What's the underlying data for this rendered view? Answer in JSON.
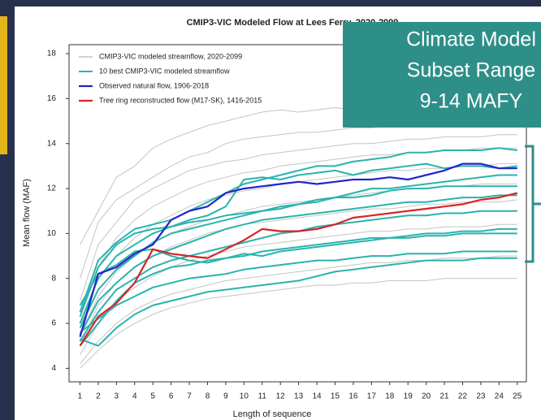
{
  "chart_data": {
    "type": "line",
    "title": "CMIP3-VIC Modeled Flow at Lees Ferry, 2020-2099",
    "xlabel": "Length of sequence",
    "ylabel": "Mean flow (MAF)",
    "callout": [
      "Climate Model",
      "Subset Range",
      "9-14 MAFY"
    ],
    "callout_color": "#2e8f88",
    "x": [
      1,
      2,
      3,
      4,
      5,
      6,
      7,
      8,
      9,
      10,
      11,
      12,
      13,
      14,
      15,
      16,
      17,
      18,
      19,
      20,
      21,
      22,
      23,
      24,
      25
    ],
    "xlim": [
      0.4,
      25.5
    ],
    "xticks": [
      1,
      2,
      3,
      4,
      5,
      6,
      7,
      8,
      9,
      10,
      11,
      12,
      13,
      14,
      15,
      16,
      17,
      18,
      19,
      20,
      21,
      22,
      23,
      24,
      25
    ],
    "ylim": [
      3.4,
      18.4
    ],
    "yticks": [
      4,
      6,
      8,
      10,
      12,
      14,
      16,
      18
    ],
    "series": [
      {
        "name": "CMIP3-VIC modeled streamflow, 2020-2099",
        "color": "#c4c4c4",
        "width": 1,
        "lines": [
          [
            9.5,
            11.0,
            12.5,
            13.0,
            13.8,
            14.2,
            14.5,
            14.8,
            15.0,
            15.2,
            15.4,
            15.5,
            15.4,
            15.5,
            15.6,
            15.5,
            15.6,
            15.6,
            15.7,
            15.6,
            15.6,
            15.7,
            15.6,
            15.6,
            15.7
          ],
          [
            8.0,
            10.5,
            11.5,
            12.0,
            12.5,
            13.0,
            13.4,
            13.6,
            14.0,
            14.2,
            14.3,
            14.4,
            14.5,
            14.5,
            14.6,
            14.7,
            14.7,
            14.8,
            14.8,
            14.9,
            14.9,
            14.9,
            15.0,
            15.0,
            15.0
          ],
          [
            7.0,
            9.5,
            10.5,
            11.5,
            12.0,
            12.4,
            12.8,
            13.0,
            13.2,
            13.3,
            13.5,
            13.6,
            13.7,
            13.8,
            13.9,
            14.0,
            14.0,
            14.1,
            14.2,
            14.2,
            14.3,
            14.3,
            14.3,
            14.4,
            14.4
          ],
          [
            6.5,
            8.5,
            9.8,
            10.6,
            11.2,
            11.6,
            12.0,
            12.3,
            12.5,
            12.7,
            12.8,
            13.0,
            13.1,
            13.2,
            13.3,
            13.4,
            13.5,
            13.5,
            13.6,
            13.6,
            13.7,
            13.7,
            13.8,
            13.8,
            13.8
          ],
          [
            5.8,
            8.0,
            9.0,
            9.8,
            10.4,
            10.8,
            11.2,
            11.5,
            11.7,
            11.9,
            12.0,
            12.2,
            12.3,
            12.4,
            12.5,
            12.6,
            12.7,
            12.8,
            12.8,
            12.9,
            12.9,
            13.0,
            13.0,
            13.1,
            13.1
          ],
          [
            5.5,
            7.2,
            8.3,
            9.0,
            9.6,
            10.0,
            10.3,
            10.6,
            10.8,
            11.0,
            11.2,
            11.3,
            11.4,
            11.5,
            11.6,
            11.7,
            11.8,
            11.9,
            12.0,
            12.0,
            12.1,
            12.1,
            12.2,
            12.2,
            12.2
          ],
          [
            5.0,
            6.8,
            7.8,
            8.5,
            9.0,
            9.4,
            9.7,
            10.0,
            10.2,
            10.4,
            10.5,
            10.6,
            10.7,
            10.8,
            10.9,
            11.0,
            11.1,
            11.1,
            11.2,
            11.3,
            11.3,
            11.4,
            11.4,
            11.4,
            11.5
          ],
          [
            4.6,
            6.0,
            7.0,
            7.6,
            8.1,
            8.5,
            8.8,
            9.0,
            9.2,
            9.4,
            9.5,
            9.6,
            9.7,
            9.8,
            9.9,
            10.0,
            10.1,
            10.1,
            10.2,
            10.2,
            10.3,
            10.3,
            10.3,
            10.4,
            10.4
          ],
          [
            4.2,
            5.2,
            6.0,
            6.6,
            7.0,
            7.3,
            7.5,
            7.7,
            7.9,
            8.0,
            8.1,
            8.2,
            8.3,
            8.4,
            8.5,
            8.6,
            8.7,
            8.7,
            8.8,
            8.8,
            8.9,
            8.9,
            8.9,
            9.0,
            9.0
          ],
          [
            4.0,
            4.8,
            5.5,
            6.0,
            6.4,
            6.7,
            6.9,
            7.1,
            7.2,
            7.3,
            7.4,
            7.5,
            7.6,
            7.7,
            7.7,
            7.8,
            7.8,
            7.9,
            7.9,
            7.9,
            8.0,
            8.0,
            8.0,
            8.0,
            8.0
          ]
        ]
      },
      {
        "name": "10 best CMIP3-VIC modeled streamflow",
        "color": "#2ab3ad",
        "width": 2,
        "lines": [
          [
            6.5,
            8.8,
            9.6,
            10.2,
            10.4,
            10.6,
            11.0,
            11.4,
            11.8,
            12.2,
            12.4,
            12.6,
            12.8,
            13.0,
            13.0,
            13.2,
            13.3,
            13.4,
            13.6,
            13.6,
            13.7,
            13.7,
            13.7,
            13.8,
            13.7
          ],
          [
            6.0,
            8.0,
            9.0,
            9.5,
            10.0,
            10.3,
            10.6,
            10.8,
            11.2,
            12.4,
            12.5,
            12.4,
            12.6,
            12.7,
            12.8,
            12.6,
            12.8,
            12.9,
            13.0,
            13.1,
            12.9,
            13.0,
            13.0,
            12.9,
            13.0
          ],
          [
            5.8,
            7.5,
            8.4,
            9.0,
            9.6,
            10.0,
            10.2,
            10.4,
            10.6,
            10.8,
            11.0,
            11.1,
            11.3,
            11.5,
            11.6,
            11.8,
            12.0,
            12.0,
            12.1,
            12.2,
            12.3,
            12.4,
            12.5,
            12.6,
            12.6
          ],
          [
            6.3,
            8.5,
            9.5,
            10.0,
            10.2,
            10.3,
            10.5,
            10.6,
            10.8,
            10.9,
            11.0,
            11.2,
            11.3,
            11.4,
            11.6,
            11.6,
            11.7,
            11.9,
            12.0,
            12.0,
            12.1,
            12.1,
            12.1,
            12.1,
            12.1
          ],
          [
            5.5,
            7.0,
            7.8,
            8.5,
            9.0,
            9.3,
            9.6,
            9.9,
            10.2,
            10.4,
            10.6,
            10.7,
            10.8,
            10.9,
            11.0,
            11.1,
            11.2,
            11.3,
            11.4,
            11.4,
            11.5,
            11.6,
            11.6,
            11.7,
            11.7
          ],
          [
            5.2,
            6.5,
            7.5,
            8.0,
            8.5,
            8.8,
            9.0,
            9.2,
            9.4,
            9.6,
            9.8,
            10.0,
            10.1,
            10.3,
            10.4,
            10.5,
            10.6,
            10.7,
            10.8,
            10.8,
            10.9,
            10.9,
            11.0,
            11.0,
            11.0
          ],
          [
            5.0,
            6.0,
            7.0,
            7.8,
            8.2,
            8.5,
            8.6,
            8.8,
            8.9,
            9.0,
            9.2,
            9.3,
            9.4,
            9.5,
            9.6,
            9.7,
            9.8,
            9.8,
            9.9,
            10.0,
            10.0,
            10.1,
            10.1,
            10.2,
            10.2
          ],
          [
            6.8,
            8.2,
            8.6,
            9.2,
            9.3,
            9.0,
            8.8,
            8.7,
            8.9,
            9.1,
            9.0,
            9.2,
            9.3,
            9.4,
            9.5,
            9.6,
            9.7,
            9.8,
            9.8,
            9.9,
            9.9,
            10.0,
            10.0,
            10.0,
            10.0
          ],
          [
            5.6,
            6.2,
            6.8,
            7.2,
            7.6,
            7.8,
            8.0,
            8.1,
            8.2,
            8.4,
            8.5,
            8.6,
            8.7,
            8.8,
            8.8,
            8.9,
            9.0,
            9.0,
            9.1,
            9.1,
            9.1,
            9.2,
            9.2,
            9.2,
            9.2
          ],
          [
            5.3,
            5.0,
            5.8,
            6.4,
            6.8,
            7.0,
            7.2,
            7.4,
            7.5,
            7.6,
            7.7,
            7.8,
            7.9,
            8.1,
            8.3,
            8.4,
            8.5,
            8.6,
            8.7,
            8.8,
            8.8,
            8.8,
            8.9,
            8.9,
            8.9
          ]
        ]
      },
      {
        "name": "Observed natural flow, 1906-2018",
        "color": "#2424c8",
        "width": 2.2,
        "lines": [
          [
            5.4,
            8.2,
            8.5,
            9.1,
            9.5,
            10.6,
            11.0,
            11.2,
            11.8,
            12.0,
            12.1,
            12.2,
            12.3,
            12.2,
            12.3,
            12.4,
            12.4,
            12.5,
            12.4,
            12.6,
            12.8,
            13.1,
            13.1,
            12.9,
            12.9
          ]
        ]
      },
      {
        "name": "Tree ring reconstructed flow (M17-SK), 1416-2015",
        "color": "#d92424",
        "width": 2.2,
        "lines": [
          [
            5.0,
            6.3,
            6.9,
            7.8,
            9.3,
            9.1,
            9.0,
            8.9,
            9.3,
            9.7,
            10.2,
            10.1,
            10.1,
            10.2,
            10.4,
            10.7,
            10.8,
            10.9,
            11.0,
            11.1,
            11.2,
            11.3,
            11.5,
            11.6,
            11.8
          ]
        ]
      }
    ]
  }
}
